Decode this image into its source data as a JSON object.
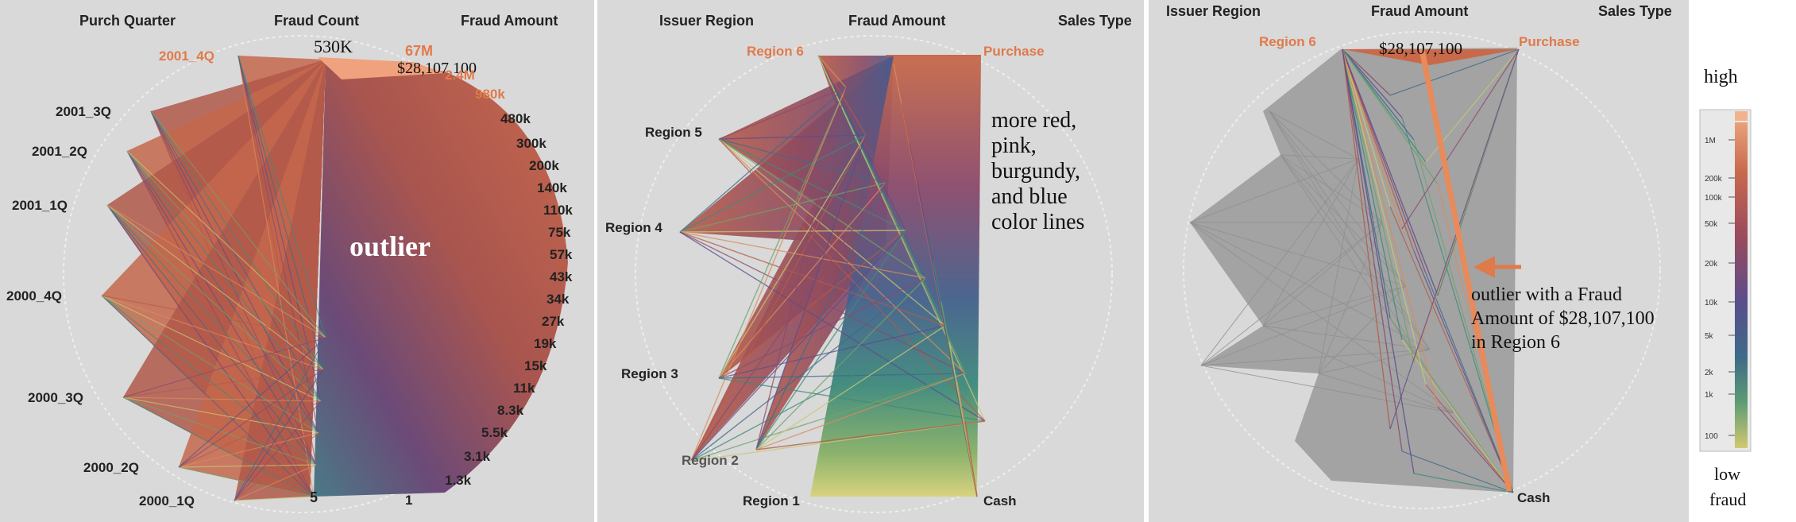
{
  "panels": [
    {
      "id": "p1",
      "axes": [
        "Purch Quarter",
        "Fraud Count",
        "Fraud Amount"
      ],
      "quarters": [
        "2001_4Q",
        "2001_3Q",
        "2001_2Q",
        "2001_1Q",
        "2000_4Q",
        "2000_3Q",
        "2000_2Q",
        "2000_1Q"
      ],
      "count_labels": {
        "top": "530K",
        "bottom": "5"
      },
      "amount_labels": [
        "$28,107,100",
        "67M",
        "2.4M",
        "980k",
        "480k",
        "300k",
        "200k",
        "140k",
        "110k",
        "75k",
        "57k",
        "43k",
        "34k",
        "27k",
        "19k",
        "15k",
        "11k",
        "8.3k",
        "5.5k",
        "3.1k",
        "1.3k",
        "1"
      ],
      "annotation": "outlier"
    },
    {
      "id": "p2",
      "axes": [
        "Issuer Region",
        "Fraud Amount",
        "Sales Type"
      ],
      "regions": [
        "Region 6",
        "Region 5",
        "Region 4",
        "Region 3",
        "Region 2",
        "Region 1"
      ],
      "sales_types": [
        "Purchase",
        "Cash"
      ],
      "annotation": [
        "more red,",
        "pink,",
        "burgundy,",
        "and blue",
        "color lines"
      ]
    },
    {
      "id": "p3",
      "axes": [
        "Issuer Region",
        "Fraud Amount",
        "Sales Type"
      ],
      "regions": [
        "Region 6"
      ],
      "sales_types": [
        "Purchase",
        "Cash"
      ],
      "amount_label": "$28,107,100",
      "annotation": [
        "outlier with a Fraud",
        "Amount of $28,107,100",
        "in Region 6"
      ]
    }
  ],
  "legend": {
    "high_label": "high",
    "low_label": [
      "low",
      "fraud"
    ],
    "ticks": [
      "1M",
      "200k",
      "100k",
      "50k",
      "20k",
      "10k",
      "5k",
      "2k",
      "1k",
      "100"
    ],
    "colors": [
      "#d98c5c",
      "#b45a48",
      "#8a4a6e",
      "#5c4d8c",
      "#3f6a8a",
      "#3e8b7a",
      "#6ea46a",
      "#c8c873"
    ]
  }
}
